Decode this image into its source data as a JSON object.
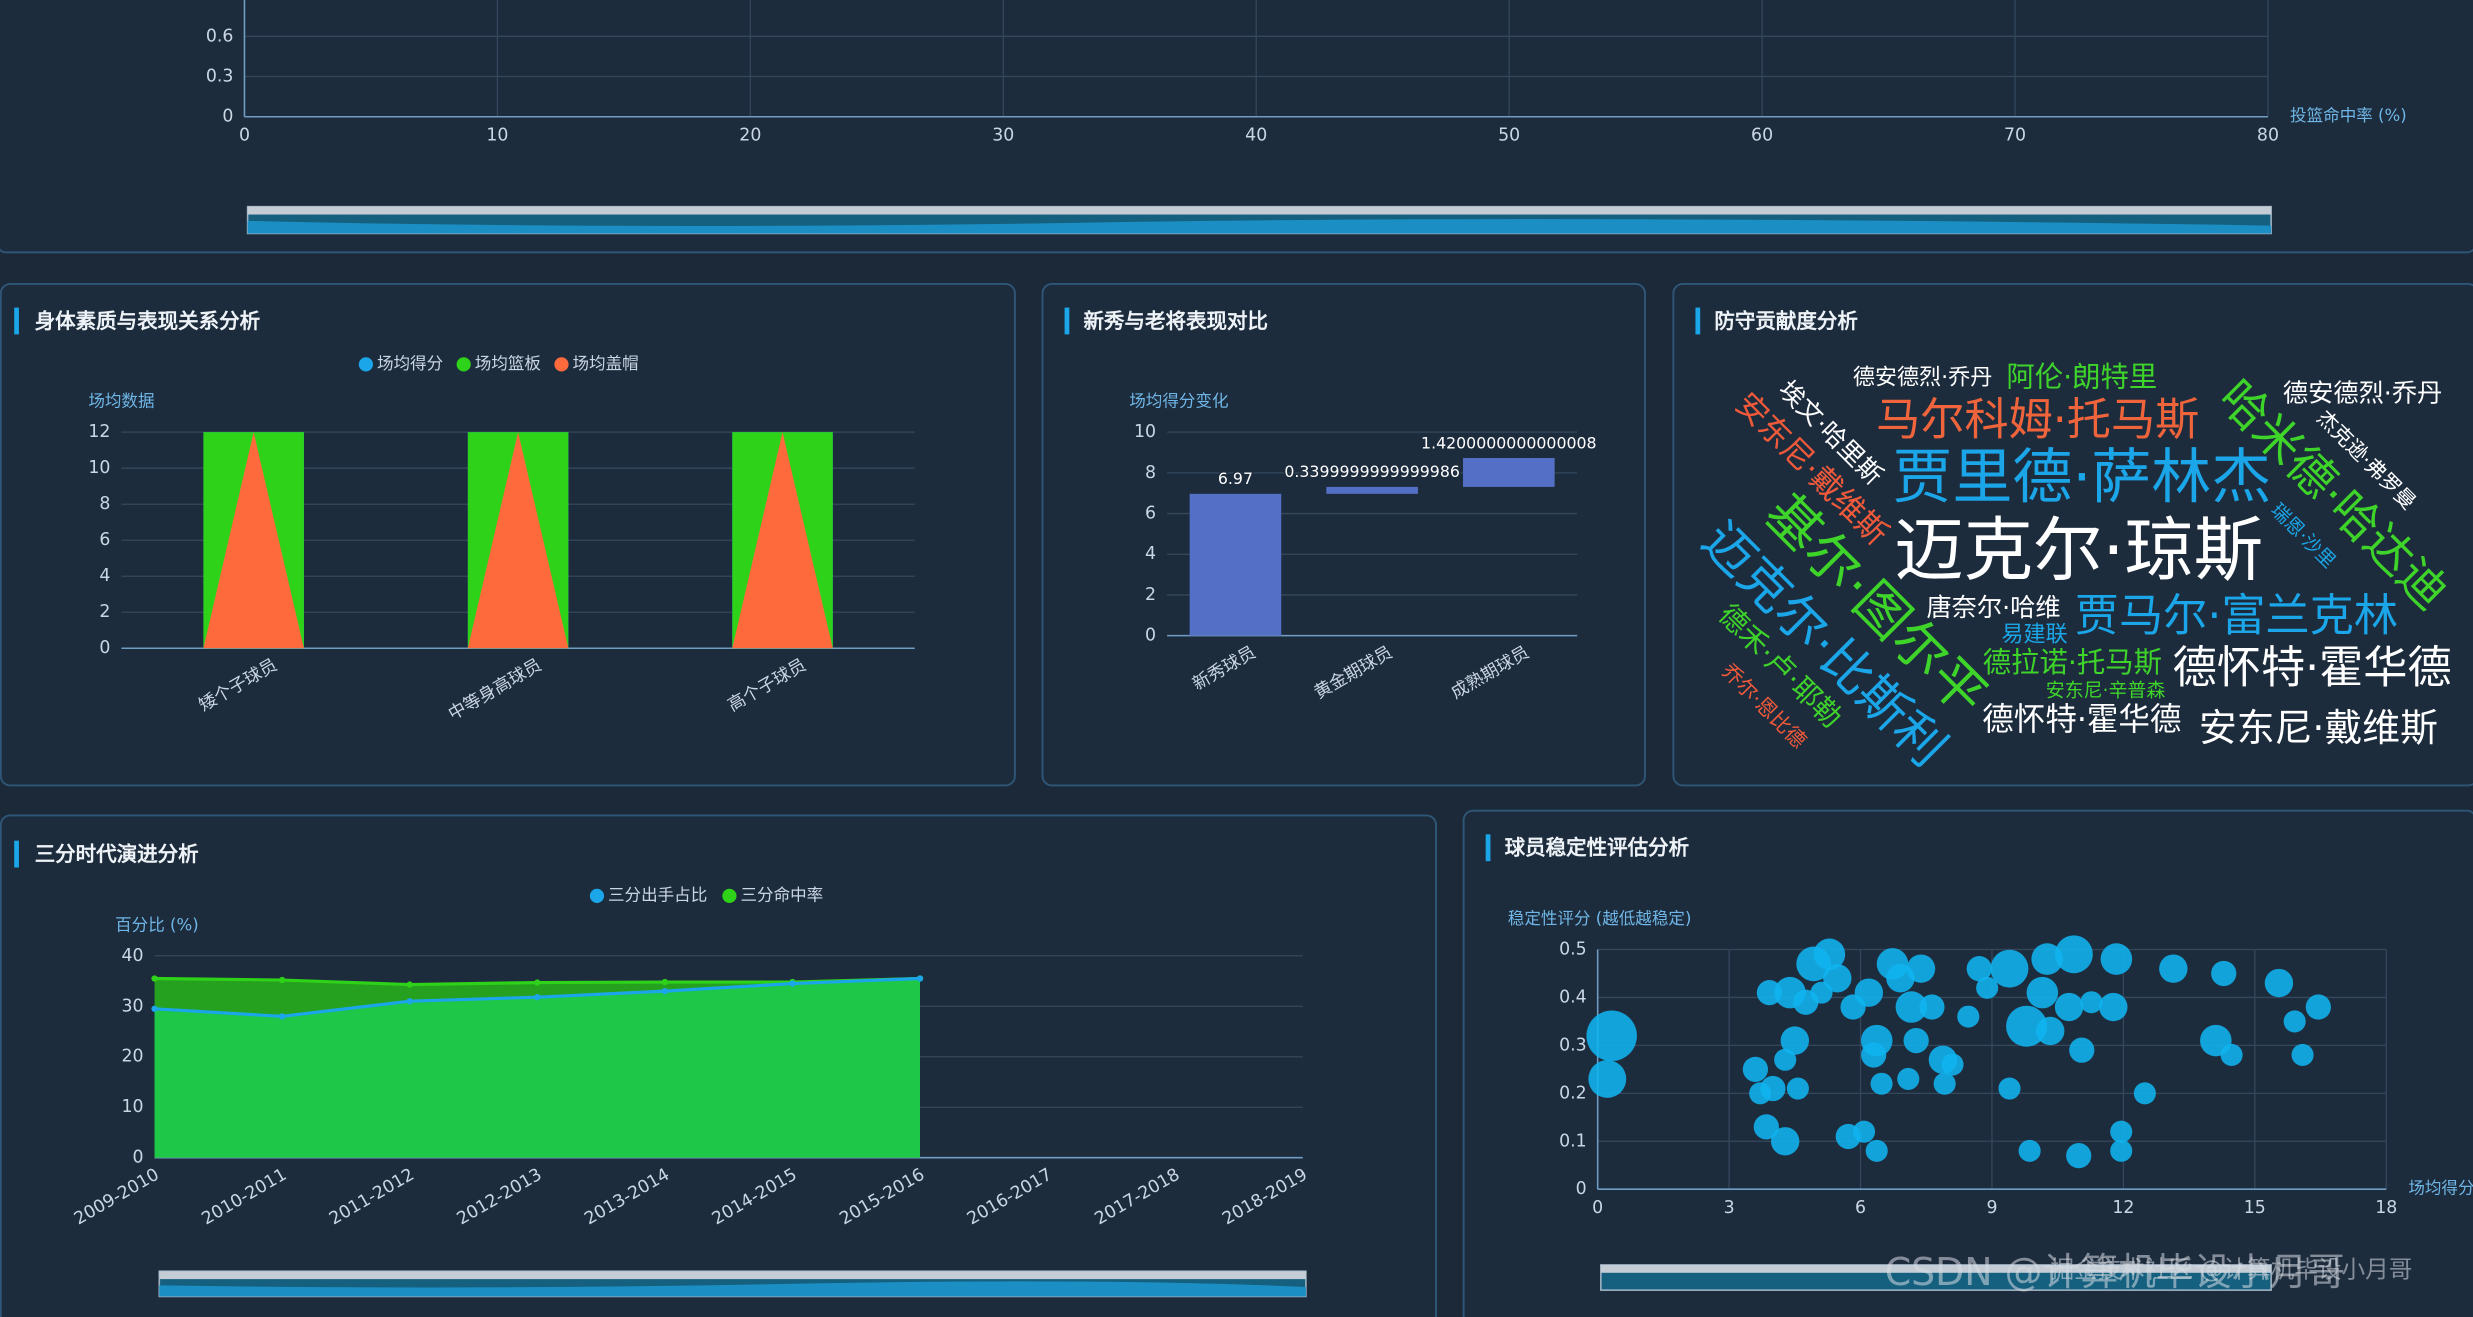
{
  "chart_data": [
    {
      "type": "scatter",
      "x_label": "投篮命中率 (%)",
      "xlim": [
        0,
        80
      ],
      "xticks": [
        0,
        10,
        20,
        30,
        40,
        50,
        60,
        70,
        80
      ],
      "ylim": [
        0,
        0.9
      ],
      "yticks": [
        0,
        0.3,
        0.6
      ],
      "x": [],
      "values": [],
      "grid": true
    },
    {
      "type": "bar",
      "title": "身体素质与表现关系分析",
      "y_label": "场均数据",
      "categories": [
        "矮个子球员",
        "中等身高球员",
        "高个子球员"
      ],
      "series": [
        {
          "name": "场均得分",
          "color": "#1aa6e8",
          "symbol": "rect",
          "values": [
            12,
            12,
            12
          ]
        },
        {
          "name": "场均篮板",
          "color": "#2dd219",
          "symbol": "rect",
          "values": [
            12,
            12,
            12
          ]
        },
        {
          "name": "场均盖帽",
          "color": "#ff6a3d",
          "symbol": "triangle",
          "values": [
            12,
            12,
            12
          ]
        }
      ],
      "ylim": [
        0,
        12
      ],
      "yticks": [
        0,
        2,
        4,
        6,
        8,
        10,
        12
      ],
      "grid": true
    },
    {
      "type": "waterfall",
      "title": "新秀与老将表现对比",
      "y_label": "场均得分变化",
      "categories": [
        "新秀球员",
        "黄金期球员",
        "成熟期球员"
      ],
      "values": [
        6.97,
        0.3399999999999986,
        1.4200000000000008
      ],
      "color": "#5470c6",
      "ylim": [
        0,
        10
      ],
      "yticks": [
        0,
        2,
        4,
        6,
        8,
        10
      ],
      "grid": true
    },
    {
      "type": "wordcloud",
      "title": "防守贡献度分析",
      "words": [
        {
          "text": "德安德烈·乔丹",
          "color": "#ffffff",
          "weight": 14
        },
        {
          "text": "阿伦·朗特里",
          "color": "#3ed42a",
          "weight": 18
        },
        {
          "text": "德安德烈·乔丹",
          "color": "#ffffff",
          "weight": 16
        },
        {
          "text": "埃文·哈里斯",
          "color": "#ffffff",
          "weight": 16
        },
        {
          "text": "安东尼·戴维斯",
          "color": "#f05a3a",
          "weight": 20
        },
        {
          "text": "马尔科姆·托马斯",
          "color": "#f0643c",
          "weight": 28
        },
        {
          "text": "哈米德·哈达迪",
          "color": "#3ed42a",
          "weight": 30
        },
        {
          "text": "杰克逊·弗罗曼",
          "color": "#ffffff",
          "weight": 13
        },
        {
          "text": "贾里德·萨林杰",
          "color": "#1aa6e8",
          "weight": 38
        },
        {
          "text": "迈克尔·琼斯",
          "color": "#ffffff",
          "weight": 44
        },
        {
          "text": "基尔·图尔平",
          "color": "#3ed42a",
          "weight": 34
        },
        {
          "text": "瑞恩·沙里",
          "color": "#1aa6e8",
          "weight": 12
        },
        {
          "text": "迈克尔·比斯利",
          "color": "#1aa6e8",
          "weight": 32
        },
        {
          "text": "唐奈尔·哈维",
          "color": "#ffffff",
          "weight": 16
        },
        {
          "text": "贾马尔·富兰克林",
          "color": "#1aa6e8",
          "weight": 28
        },
        {
          "text": "易建联",
          "color": "#1aa6e8",
          "weight": 14
        },
        {
          "text": "德禾·卢·耶勒",
          "color": "#3ed42a",
          "weight": 18
        },
        {
          "text": "德拉诺·托马斯",
          "color": "#3ed42a",
          "weight": 18
        },
        {
          "text": "安东尼·辛普森",
          "color": "#3ed42a",
          "weight": 12
        },
        {
          "text": "德怀特·霍华德",
          "color": "#ffffff",
          "weight": 28
        },
        {
          "text": "乔尔·恩比德",
          "color": "#f05a3a",
          "weight": 13
        },
        {
          "text": "德怀特·霍华德",
          "color": "#ffffff",
          "weight": 20
        },
        {
          "text": "安东尼·戴维斯",
          "color": "#ffffff",
          "weight": 24
        }
      ]
    },
    {
      "type": "area",
      "title": "三分时代演进分析",
      "y_label": "百分比 (%)",
      "categories": [
        "2009-2010",
        "2010-2011",
        "2011-2012",
        "2012-2013",
        "2013-2014",
        "2014-2015",
        "2015-2016",
        "2016-2017",
        "2017-2018",
        "2018-2019"
      ],
      "series": [
        {
          "name": "三分出手占比",
          "color": "#1aa6e8",
          "area_color": "#1ec94a",
          "values": [
            29.5,
            28,
            31,
            31.8,
            33,
            34.5,
            35.5,
            null,
            null,
            null
          ]
        },
        {
          "name": "三分命中率",
          "color": "#2dd219",
          "area_color": "#27a81e",
          "values": [
            35.5,
            35.2,
            34.3,
            34.7,
            34.8,
            34.8,
            35.5,
            null,
            null,
            null
          ]
        }
      ],
      "ylim": [
        0,
        40
      ],
      "yticks": [
        0,
        10,
        20,
        30,
        40
      ],
      "grid": true
    },
    {
      "type": "bubble",
      "title": "球员稳定性评估分析",
      "y_label": "稳定性评分 (越低越稳定)",
      "x_label": "场均得分",
      "color": "#10b4f0",
      "x": [
        0.32,
        0.22,
        3.6,
        3.71,
        4.0,
        4.57,
        4.5,
        4.28,
        3.85,
        4.28,
        3.92,
        4.39,
        4.75,
        4.93,
        5.29,
        5.47,
        5.11,
        5.72,
        6.08,
        6.37,
        5.83,
        6.19,
        6.37,
        6.3,
        6.48,
        6.73,
        6.91,
        7.16,
        7.38,
        7.27,
        7.09,
        7.63,
        7.88,
        8.1,
        7.92,
        8.46,
        8.71,
        8.89,
        9.4,
        9.4,
        9.86,
        9.79,
        10.15,
        10.26,
        10.33,
        10.87,
        10.76,
        11.05,
        11.27,
        11.77,
        11.84,
        10.98,
        11.95,
        11.95,
        12.49,
        13.14,
        14.11,
        14.29,
        14.47,
        15.55,
        15.91,
        16.45,
        16.09
      ],
      "values": [
        0.32,
        0.23,
        0.25,
        0.2,
        0.21,
        0.21,
        0.31,
        0.27,
        0.13,
        0.1,
        0.41,
        0.41,
        0.39,
        0.47,
        0.49,
        0.44,
        0.41,
        0.11,
        0.12,
        0.08,
        0.38,
        0.41,
        0.31,
        0.28,
        0.22,
        0.47,
        0.44,
        0.38,
        0.46,
        0.31,
        0.23,
        0.38,
        0.27,
        0.26,
        0.22,
        0.36,
        0.46,
        0.42,
        0.46,
        0.21,
        0.08,
        0.34,
        0.41,
        0.48,
        0.33,
        0.49,
        0.38,
        0.29,
        0.39,
        0.38,
        0.48,
        0.07,
        0.12,
        0.08,
        0.2,
        0.46,
        0.31,
        0.45,
        0.28,
        0.43,
        0.35,
        0.38,
        0.28
      ],
      "sizes": [
        16,
        12,
        8,
        7,
        8,
        7,
        9,
        7,
        8,
        9,
        8,
        10,
        8,
        11,
        10,
        9,
        7,
        8,
        7,
        7,
        8,
        9,
        10,
        8,
        7,
        10,
        9,
        10,
        9,
        8,
        7,
        8,
        9,
        7,
        7,
        7,
        8,
        7,
        12,
        7,
        7,
        13,
        10,
        10,
        9,
        12,
        9,
        8,
        7,
        9,
        10,
        8,
        7,
        7,
        7,
        9,
        10,
        8,
        7,
        9,
        7,
        8,
        7
      ],
      "xlim": [
        0,
        18
      ],
      "xticks": [
        0,
        3,
        6,
        9,
        12,
        15,
        18
      ],
      "ylim": [
        0,
        0.5
      ],
      "yticks": [
        0,
        0.1,
        0.2,
        0.3,
        0.4,
        0.5
      ],
      "grid": true
    }
  ],
  "watermarks": [
    "CSDN @计算机毕设小月哥",
    "掘金技术社区 @计算机毕设小月哥"
  ]
}
